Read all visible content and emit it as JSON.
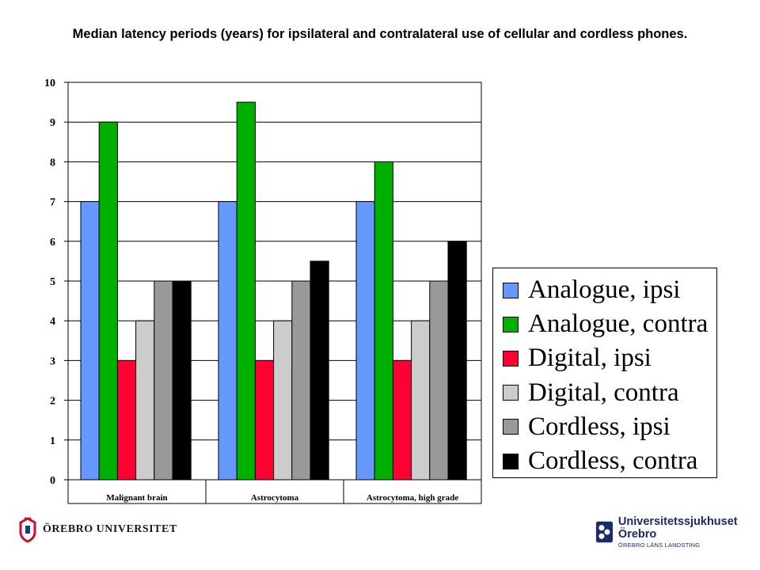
{
  "title": "Median latency periods (years) for ipsilateral and contralateral use of cellular and cordless phones.",
  "chart_data": {
    "type": "bar",
    "categories": [
      "Malignant brain",
      "Astrocytoma",
      "Astrocytoma, high grade"
    ],
    "series": [
      {
        "name": "Analogue, ipsi",
        "color": "#6699ff",
        "values": [
          7,
          7,
          7
        ]
      },
      {
        "name": "Analogue, contra",
        "color": "#00b000",
        "values": [
          9,
          9.5,
          8
        ]
      },
      {
        "name": "Digital, ipsi",
        "color": "#ff0033",
        "values": [
          3,
          3,
          3
        ]
      },
      {
        "name": "Digital, contra",
        "color": "#cccccc",
        "values": [
          4,
          4,
          4
        ]
      },
      {
        "name": "Cordless, ipsi",
        "color": "#999999",
        "values": [
          5,
          5,
          5
        ]
      },
      {
        "name": "Cordless, contra",
        "color": "#000000",
        "values": [
          5,
          5.5,
          6
        ]
      }
    ],
    "ylim": [
      0,
      10
    ],
    "yticks": [
      "0",
      "1",
      "2",
      "3",
      "4",
      "5",
      "6",
      "7",
      "8",
      "9",
      "10"
    ],
    "grid": true,
    "legend_position": "right"
  },
  "logos": {
    "left": {
      "text": "ÖREBRO UNIVERSITET",
      "icon": "crown-seal-icon"
    },
    "right": {
      "text": "Universitetssjukhuset Örebro",
      "subtext": "ÖREBRO LÄNS LANDSTING",
      "icon": "county-emblem-icon"
    }
  }
}
